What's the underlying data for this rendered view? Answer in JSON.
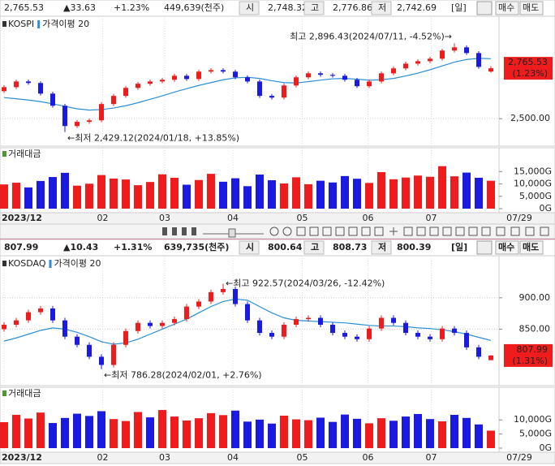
{
  "chart_data": [
    {
      "type": "candlestick",
      "title": "KOSPI",
      "ma_label": "가격이평 20",
      "header": {
        "price": "2,765.53",
        "change": "▲33.63",
        "rate": "+1.23%",
        "volume": "449,639(천주)",
        "open_label": "시",
        "open": "2,748.32",
        "high_label": "고",
        "high": "2,776.86",
        "low_label": "저",
        "low": "2,742.69",
        "period": "[일]",
        "buy": "매수",
        "sell": "매도"
      },
      "open": [
        2645,
        2666,
        2696,
        2688,
        2632,
        2568,
        2461,
        2483,
        2491,
        2577,
        2620,
        2662,
        2684,
        2696,
        2705,
        2726,
        2709,
        2748,
        2756,
        2748,
        2718,
        2696,
        2620,
        2611,
        2675,
        2718,
        2739,
        2731,
        2726,
        2705,
        2671,
        2696,
        2739,
        2765,
        2790,
        2803,
        2816,
        2859,
        2876,
        2846,
        2748.32
      ],
      "high": [
        2676,
        2706,
        2706,
        2698,
        2642,
        2578,
        2493,
        2501,
        2587,
        2630,
        2672,
        2694,
        2706,
        2715,
        2736,
        2736,
        2758,
        2766,
        2766,
        2758,
        2728,
        2706,
        2630,
        2685,
        2728,
        2749,
        2749,
        2741,
        2736,
        2715,
        2706,
        2749,
        2775,
        2800,
        2813,
        2826,
        2869,
        2896.43,
        2886,
        2856,
        2776.86
      ],
      "low": [
        2635,
        2656,
        2678,
        2622,
        2558,
        2429.12,
        2451,
        2473,
        2481,
        2567,
        2610,
        2652,
        2674,
        2686,
        2695,
        2699,
        2699,
        2738,
        2738,
        2708,
        2686,
        2610,
        2601,
        2601,
        2665,
        2708,
        2721,
        2716,
        2695,
        2661,
        2661,
        2686,
        2729,
        2755,
        2780,
        2793,
        2806,
        2849,
        2836,
        2763,
        2742.69
      ],
      "close": [
        2666,
        2696,
        2688,
        2632,
        2568,
        2461,
        2483,
        2491,
        2577,
        2620,
        2662,
        2684,
        2696,
        2705,
        2726,
        2709,
        2748,
        2756,
        2748,
        2718,
        2696,
        2620,
        2611,
        2675,
        2718,
        2739,
        2731,
        2726,
        2705,
        2671,
        2696,
        2739,
        2765,
        2790,
        2803,
        2816,
        2859,
        2876,
        2846,
        2773,
        2765.53
      ],
      "ma": [
        2611,
        2605,
        2598,
        2590,
        2578,
        2565,
        2552,
        2545,
        2548,
        2556,
        2568,
        2584,
        2602,
        2620,
        2640,
        2658,
        2675,
        2690,
        2705,
        2715,
        2718,
        2712,
        2700,
        2690,
        2688,
        2695,
        2703,
        2710,
        2712,
        2708,
        2703,
        2705,
        2712,
        2725,
        2740,
        2758,
        2778,
        2798,
        2812,
        2818,
        2816
      ],
      "ylim": [
        2355,
        3040
      ],
      "yticks": [
        {
          "value": 2500,
          "label": "2,500.00"
        }
      ],
      "last_label": "2,765.53",
      "last_rate": "(1.23%)",
      "max_annotation": "최고 2,896.43(2024/07/11, -4.52%)→",
      "min_annotation": "←최저 2,429.12(2024/01/18, +13.85%)",
      "volume_title": "거래대금",
      "volume": [
        9800,
        10500,
        8600,
        11200,
        12800,
        14500,
        9300,
        10100,
        13600,
        12200,
        11800,
        9500,
        10800,
        13900,
        12500,
        9700,
        11600,
        14100,
        10900,
        12300,
        9100,
        13800,
        11500,
        10200,
        12700,
        9900,
        11300,
        10600,
        13200,
        12100,
        10400,
        14800,
        11900,
        12600,
        13400,
        12900,
        17200,
        13100,
        14600,
        12500,
        11300
      ],
      "volume_lim": [
        0,
        24000
      ],
      "volume_ticks": [
        {
          "value": 15000,
          "label": "15,000G"
        },
        {
          "value": 10000,
          "label": "10,000G"
        },
        {
          "value": 5000,
          "label": "5,000G"
        },
        {
          "value": 0,
          "label": "0G"
        }
      ],
      "xticks": [
        {
          "value": 0,
          "label": "2023/12"
        },
        {
          "value": 8.1,
          "label": "02"
        },
        {
          "value": 13.2,
          "label": "03"
        },
        {
          "value": 18.8,
          "label": "04"
        },
        {
          "value": 24.5,
          "label": "05"
        },
        {
          "value": 29.9,
          "label": "06"
        },
        {
          "value": 35.1,
          "label": "07"
        }
      ],
      "last_date": "07/29",
      "colors": {
        "up": "#ee1c1c",
        "down": "#1a1ae0",
        "ma": "#2b8fd6"
      }
    },
    {
      "type": "candlestick",
      "title": "KOSDAQ",
      "ma_label": "가격이평 20",
      "header": {
        "price": "807.99",
        "change": "▲10.43",
        "rate": "+1.31%",
        "volume": "639,735(천주)",
        "open_label": "시",
        "open": "800.64",
        "high_label": "고",
        "high": "808.73",
        "low_label": "저",
        "low": "800.39",
        "period": "[일]",
        "buy": "매수",
        "sell": "매도"
      },
      "open": [
        850,
        857,
        864,
        877,
        883,
        864,
        838,
        825,
        806,
        793,
        825,
        847,
        860,
        855,
        860,
        866,
        886,
        894,
        909,
        914,
        890,
        864,
        844,
        838,
        857,
        866,
        868,
        857,
        844,
        838,
        834,
        851,
        868,
        860,
        844,
        838,
        834,
        851,
        844,
        821,
        800.64
      ],
      "high": [
        861,
        868,
        881,
        887,
        887,
        868,
        842,
        829,
        810,
        829,
        851,
        864,
        864,
        864,
        870,
        890,
        898,
        913,
        922.57,
        918,
        894,
        868,
        848,
        861,
        870,
        872,
        872,
        861,
        848,
        842,
        855,
        872,
        872,
        864,
        848,
        842,
        855,
        855,
        848,
        825,
        808.73
      ],
      "low": [
        846,
        853,
        860,
        873,
        860,
        834,
        821,
        802,
        786.28,
        789,
        821,
        843,
        851,
        851,
        856,
        862,
        882,
        890,
        905,
        886,
        860,
        840,
        834,
        834,
        853,
        862,
        853,
        840,
        834,
        830,
        830,
        847,
        856,
        840,
        834,
        830,
        830,
        840,
        817,
        802,
        800.39
      ],
      "close": [
        857,
        864,
        877,
        883,
        864,
        838,
        825,
        806,
        793,
        825,
        847,
        860,
        855,
        860,
        866,
        886,
        894,
        909,
        914,
        890,
        864,
        844,
        838,
        857,
        866,
        868,
        857,
        844,
        838,
        834,
        851,
        868,
        860,
        844,
        838,
        834,
        851,
        844,
        821,
        806,
        807.99
      ],
      "ma": [
        831,
        836,
        842,
        848,
        852,
        850,
        845,
        838,
        830,
        826,
        828,
        834,
        842,
        850,
        858,
        866,
        876,
        886,
        894,
        898,
        896,
        886,
        876,
        868,
        864,
        863,
        862,
        861,
        860,
        858,
        856,
        855,
        855,
        854,
        852,
        851,
        849,
        846,
        842,
        837,
        832
      ],
      "ylim": [
        760,
        967
      ],
      "yticks": [
        {
          "value": 900,
          "label": "900.00"
        },
        {
          "value": 850,
          "label": "850.00"
        }
      ],
      "last_label": "807.99",
      "last_rate": "(1.31%)",
      "max_annotation": "←최고 922.57(2024/03/26, -12.42%)",
      "min_annotation": "←최저 786.28(2024/02/01, +2.76%)",
      "volume_title": "거래대금",
      "volume": [
        9200,
        11800,
        10500,
        12600,
        8900,
        10700,
        12200,
        11400,
        13100,
        10300,
        9600,
        12800,
        10900,
        13500,
        11200,
        9800,
        10600,
        12400,
        11700,
        13300,
        9400,
        10100,
        8700,
        11500,
        10200,
        9900,
        10800,
        9300,
        11900,
        10400,
        8800,
        10600,
        9700,
        11200,
        12100,
        10300,
        9500,
        11800,
        10700,
        8400,
        6200
      ],
      "volume_lim": [
        0,
        21000
      ],
      "volume_ticks": [
        {
          "value": 10000,
          "label": "10,000G"
        },
        {
          "value": 5000,
          "label": "5,000G"
        },
        {
          "value": 0,
          "label": "0G"
        }
      ],
      "xticks": [
        {
          "value": 0,
          "label": "2023/12"
        },
        {
          "value": 8.1,
          "label": "02"
        },
        {
          "value": 13.2,
          "label": "03"
        },
        {
          "value": 18.8,
          "label": "04"
        },
        {
          "value": 24.5,
          "label": "05"
        },
        {
          "value": 29.9,
          "label": "06"
        },
        {
          "value": 35.1,
          "label": "07"
        }
      ],
      "last_date": "07/29",
      "colors": {
        "up": "#ee1c1c",
        "down": "#1a1ae0",
        "ma": "#2b8fd6"
      }
    }
  ]
}
